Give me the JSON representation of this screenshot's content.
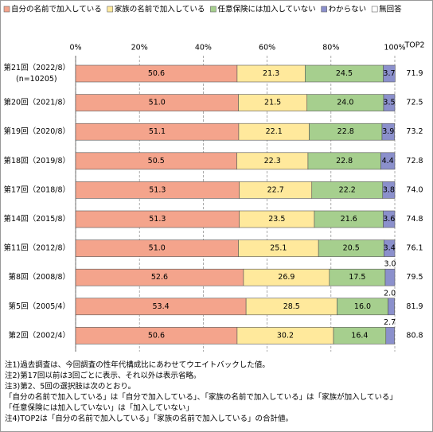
{
  "chart_data": {
    "type": "stacked-bar-horizontal",
    "categories": [
      "第21回（2022/8）",
      "第20回（2021/8）",
      "第19回（2020/8）",
      "第18回（2019/8）",
      "第17回（2018/8）",
      "第14回（2015/8）",
      "第11回（2012/8）",
      "第8回（2008/8）",
      "第5回（2005/4）",
      "第2回（2002/4）"
    ],
    "sample_size_label": "(n=10205)",
    "series": [
      {
        "name": "自分の名前で加入している",
        "color": "#f4a48c",
        "values": [
          50.6,
          51.0,
          51.1,
          50.5,
          51.3,
          51.3,
          51.0,
          52.6,
          53.4,
          50.6
        ],
        "value_labels": [
          "50.6",
          "51.0",
          "51.1",
          "50.5",
          "51.3",
          "51.3",
          "51.0",
          "52.6",
          "53.4",
          "50.6"
        ]
      },
      {
        "name": "家族の名前で加入している",
        "color": "#ffe99c",
        "values": [
          21.3,
          21.5,
          22.1,
          22.3,
          22.7,
          23.5,
          25.1,
          26.9,
          28.5,
          30.2
        ],
        "value_labels": [
          "21.3",
          "21.5",
          "22.1",
          "22.3",
          "22.7",
          "23.5",
          "25.1",
          "26.9",
          "28.5",
          "30.2"
        ]
      },
      {
        "name": "任意保険には加入していない",
        "color": "#a6cf8e",
        "values": [
          24.5,
          24.0,
          22.8,
          22.8,
          22.2,
          21.6,
          20.5,
          17.5,
          16.0,
          16.4
        ],
        "value_labels": [
          "24.5",
          "24.0",
          "22.8",
          "22.8",
          "22.2",
          "21.6",
          "20.5",
          "17.5",
          "16.0",
          "16.4"
        ]
      },
      {
        "name": "わからない",
        "color": "#8b90cc",
        "values": [
          3.7,
          3.5,
          3.9,
          4.4,
          3.8,
          3.6,
          3.4,
          3.0,
          2.0,
          2.7
        ],
        "value_labels": [
          "3.7",
          "3.5",
          "3.9",
          "4.4",
          "3.8",
          "3.6",
          "3.4",
          "3.0",
          "2.0",
          "2.7"
        ]
      },
      {
        "name": "無回答",
        "color": "#ffffff",
        "values": [
          0,
          0,
          0,
          0,
          0,
          0,
          0,
          0,
          0,
          0
        ]
      }
    ],
    "top2": {
      "label": "TOP2",
      "values": [
        71.9,
        72.5,
        73.2,
        72.8,
        74.0,
        74.8,
        76.1,
        79.5,
        81.9,
        80.8
      ],
      "value_labels": [
        "71.9",
        "72.5",
        "73.2",
        "72.8",
        "74.0",
        "74.8",
        "76.1",
        "79.5",
        "81.9",
        "80.8"
      ]
    },
    "xlim": [
      0,
      100
    ],
    "xticks": [
      {
        "value": 0,
        "label": "0%"
      },
      {
        "value": 20,
        "label": "20%"
      },
      {
        "value": 40,
        "label": "40%"
      },
      {
        "value": 60,
        "label": "60%"
      },
      {
        "value": 80,
        "label": "80%"
      },
      {
        "value": 100,
        "label": "100%"
      }
    ],
    "grid": true,
    "notes": [
      "注1)過去調査は、今回調査の性年代構成比にあわせてウエイトバックした値。",
      "注2)第17回以前は3回ごとに表示、それ以外は表示省略。",
      "注3)第2、5回の選択肢は次のとおり。",
      "「自分の名前で加入している」は「自分で加入している」、「家族の名前で加入している」は「家族が加入している」",
      "「任意保険には加入していない」は「加入していない」",
      "注4)TOP2は「自分の名前で加入している」「家族の名前で加入している」の合計値。"
    ]
  }
}
